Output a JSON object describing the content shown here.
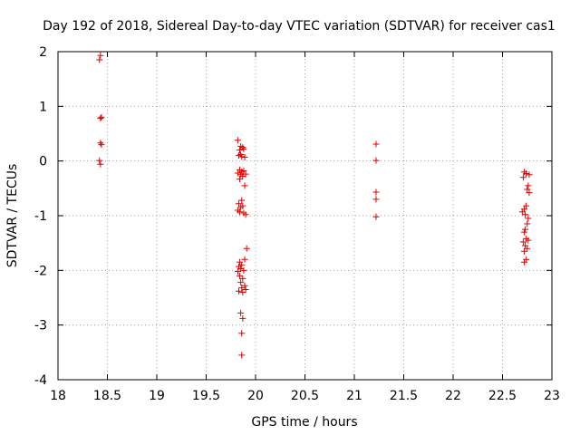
{
  "chart_data": {
    "type": "scatter",
    "title": "Day 192 of 2018, Sidereal Day-to-day VTEC variation (SDTVAR) for receiver cas1",
    "xlabel": "GPS time / hours",
    "ylabel": "SDTVAR / TECUs",
    "xlim": [
      18,
      23
    ],
    "ylim": [
      -4,
      2
    ],
    "xticks": [
      18,
      18.5,
      19,
      19.5,
      20,
      20.5,
      21,
      21.5,
      22,
      22.5,
      23
    ],
    "xtick_labels": [
      "18",
      "18.5",
      "19",
      "19.5",
      "20",
      "20.5",
      "21",
      "21.5",
      "22",
      "22.5",
      "23"
    ],
    "yticks": [
      -4,
      -3,
      -2,
      -1,
      0,
      1,
      2
    ],
    "ytick_labels": [
      "-4",
      "-3",
      "-2",
      "-1",
      "0",
      "1",
      "2"
    ],
    "grid": true,
    "marker": "+",
    "color": "#e00000",
    "series": [
      {
        "name": "SDTVAR",
        "points": [
          [
            18.43,
            1.93
          ],
          [
            18.42,
            1.85
          ],
          [
            18.44,
            0.8
          ],
          [
            18.43,
            0.78
          ],
          [
            18.43,
            0.33
          ],
          [
            18.44,
            0.3
          ],
          [
            18.42,
            0.01
          ],
          [
            18.43,
            -0.06
          ],
          [
            19.82,
            0.38
          ],
          [
            19.85,
            0.27
          ],
          [
            19.87,
            0.25
          ],
          [
            19.84,
            0.2
          ],
          [
            19.88,
            0.22
          ],
          [
            19.85,
            0.12
          ],
          [
            19.83,
            0.1
          ],
          [
            19.86,
            0.08
          ],
          [
            19.89,
            0.07
          ],
          [
            19.84,
            -0.16
          ],
          [
            19.86,
            -0.2
          ],
          [
            19.88,
            -0.18
          ],
          [
            19.82,
            -0.22
          ],
          [
            19.85,
            -0.25
          ],
          [
            19.87,
            -0.28
          ],
          [
            19.9,
            -0.24
          ],
          [
            19.84,
            -0.33
          ],
          [
            19.89,
            -0.45
          ],
          [
            19.86,
            -0.72
          ],
          [
            19.83,
            -0.78
          ],
          [
            19.85,
            -0.85
          ],
          [
            19.87,
            -0.82
          ],
          [
            19.82,
            -0.9
          ],
          [
            19.84,
            -0.93
          ],
          [
            19.88,
            -0.95
          ],
          [
            19.9,
            -0.98
          ],
          [
            19.91,
            -1.6
          ],
          [
            19.84,
            -1.85
          ],
          [
            19.86,
            -1.9
          ],
          [
            19.89,
            -1.8
          ],
          [
            19.83,
            -1.93
          ],
          [
            19.85,
            -1.97
          ],
          [
            19.88,
            -2.0
          ],
          [
            19.82,
            -2.02
          ],
          [
            19.84,
            -2.1
          ],
          [
            19.87,
            -2.15
          ],
          [
            19.85,
            -2.22
          ],
          [
            19.89,
            -2.28
          ],
          [
            19.86,
            -2.32
          ],
          [
            19.83,
            -2.38
          ],
          [
            19.87,
            -2.4
          ],
          [
            19.9,
            -2.35
          ],
          [
            19.85,
            -2.78
          ],
          [
            19.87,
            -2.88
          ],
          [
            19.86,
            -3.15
          ],
          [
            19.86,
            -3.55
          ],
          [
            21.22,
            0.31
          ],
          [
            21.22,
            0.01
          ],
          [
            21.22,
            -0.57
          ],
          [
            21.22,
            -0.7
          ],
          [
            21.22,
            -1.02
          ],
          [
            22.72,
            -0.2
          ],
          [
            22.74,
            -0.23
          ],
          [
            22.71,
            -0.3
          ],
          [
            22.77,
            -0.25
          ],
          [
            22.76,
            -0.45
          ],
          [
            22.75,
            -0.52
          ],
          [
            22.77,
            -0.58
          ],
          [
            22.74,
            -0.82
          ],
          [
            22.72,
            -0.88
          ],
          [
            22.7,
            -0.93
          ],
          [
            22.73,
            -0.98
          ],
          [
            22.76,
            -1.05
          ],
          [
            22.75,
            -1.15
          ],
          [
            22.73,
            -1.25
          ],
          [
            22.72,
            -1.3
          ],
          [
            22.74,
            -1.42
          ],
          [
            22.71,
            -1.48
          ],
          [
            22.76,
            -1.45
          ],
          [
            22.73,
            -1.55
          ],
          [
            22.75,
            -1.6
          ],
          [
            22.72,
            -1.65
          ],
          [
            22.74,
            -1.8
          ],
          [
            22.72,
            -1.85
          ]
        ]
      }
    ]
  }
}
